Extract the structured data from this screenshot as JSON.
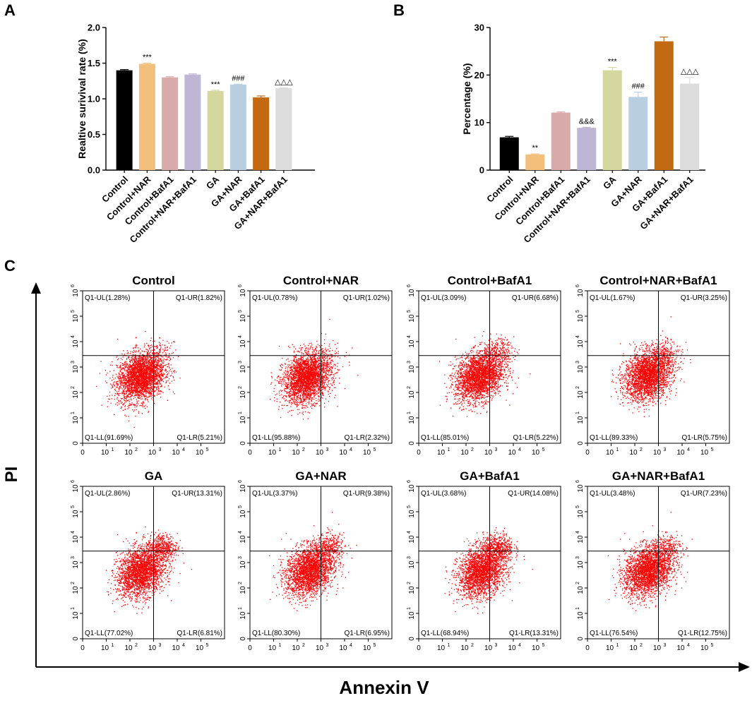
{
  "figure": {
    "panels": [
      {
        "letter": "A"
      },
      {
        "letter": "B"
      },
      {
        "letter": "C"
      }
    ],
    "colors": {
      "bars": [
        "#000000",
        "#f2bf7d",
        "#d8aaaa",
        "#bfb6d6",
        "#d5d79f",
        "#b9cfe1",
        "#c26a12",
        "#dcdcdc"
      ],
      "dots": "#ff0000",
      "axis": "#000000"
    }
  },
  "chart_data": [
    {
      "id": "A",
      "type": "bar",
      "title": "",
      "xlabel": "",
      "ylabel": "Realtive surivival rate (%)",
      "categories": [
        "Control",
        "Control+NAR",
        "Control+BafA1",
        "Control+NAR+BafA1",
        "GA",
        "GA+NAR",
        "GA+BafA1",
        "GA+NAR+BafA1"
      ],
      "values": [
        1.4,
        1.49,
        1.3,
        1.34,
        1.11,
        1.2,
        1.02,
        1.15
      ],
      "errors": [
        0.01,
        0.01,
        0.01,
        0.01,
        0.01,
        0.005,
        0.02,
        0.005
      ],
      "annotations": [
        "",
        "***",
        "",
        "",
        "***",
        "###",
        "",
        "△△△"
      ],
      "ylim": [
        0,
        2.0
      ],
      "yticks": [
        0.0,
        0.5,
        1.0,
        1.5,
        2.0
      ],
      "ytick_labels": [
        "0.0",
        "0.5",
        "1.0",
        "1.5",
        "2.0"
      ]
    },
    {
      "id": "B",
      "type": "bar",
      "title": "",
      "xlabel": "",
      "ylabel": "Percentage (%)",
      "categories": [
        "Control",
        "Control+NAR",
        "Control+BafA1",
        "Control+NAR+BafA1",
        "GA",
        "GA+NAR",
        "GA+BafA1",
        "GA+NAR+BafA1"
      ],
      "values": [
        6.9,
        3.3,
        12.1,
        8.9,
        21.0,
        15.4,
        27.1,
        18.2
      ],
      "errors": [
        0.2,
        0.1,
        0.15,
        0.1,
        0.6,
        1.0,
        0.9,
        1.3
      ],
      "annotations": [
        "",
        "**",
        "",
        "&&&",
        "***",
        "###",
        "",
        "△△△"
      ],
      "ylim": [
        0,
        30
      ],
      "yticks": [
        0,
        10,
        20,
        30
      ],
      "ytick_labels": [
        "0",
        "10",
        "20",
        "30"
      ]
    },
    {
      "id": "C",
      "type": "scatter",
      "xlabel": "Annexin V",
      "ylabel": "PI",
      "axis_exponents": [
        "1",
        "2",
        "3",
        "4",
        "5"
      ],
      "axis_zero": "0",
      "axis_base": "10",
      "y_top_exponent": "6",
      "quadrant_gate_log": {
        "x": 3.0,
        "y": 3.45
      },
      "plots": [
        {
          "title": "Control",
          "UL": "Q1-UL(1.28%)",
          "UR": "Q1-UR(1.82%)",
          "LL": "Q1-LL(91.69%)",
          "LR": "Q1-LR(5.21%)",
          "pop_ur_frac": 0.02,
          "center": [
            2.45,
            2.65
          ]
        },
        {
          "title": "Control+NAR",
          "UL": "Q1-UL(0.78%)",
          "UR": "Q1-UR(1.02%)",
          "LL": "Q1-LL(95.88%)",
          "LR": "Q1-LR(2.32%)",
          "pop_ur_frac": 0.01,
          "center": [
            2.4,
            2.6
          ]
        },
        {
          "title": "Control+BafA1",
          "UL": "Q1-UL(3.09%)",
          "UR": "Q1-UR(6.68%)",
          "LL": "Q1-LL(85.01%)",
          "LR": "Q1-LR(5.22%)",
          "pop_ur_frac": 0.07,
          "center": [
            2.55,
            2.65
          ]
        },
        {
          "title": "Control+NAR+BafA1",
          "UL": "Q1-UL(1.67%)",
          "UR": "Q1-UR(3.25%)",
          "LL": "Q1-LL(89.33%)",
          "LR": "Q1-LR(5.75%)",
          "pop_ur_frac": 0.04,
          "center": [
            2.55,
            2.7
          ]
        },
        {
          "title": "GA",
          "UL": "Q1-UL(2.86%)",
          "UR": "Q1-UR(13.31%)",
          "LL": "Q1-LL(77.02%)",
          "LR": "Q1-LR(6.81%)",
          "pop_ur_frac": 0.13,
          "center": [
            2.45,
            2.65
          ]
        },
        {
          "title": "GA+NAR",
          "UL": "Q1-UL(3.37%)",
          "UR": "Q1-UR(9.38%)",
          "LL": "Q1-LL(80.30%)",
          "LR": "Q1-LR(6.95%)",
          "pop_ur_frac": 0.1,
          "center": [
            2.5,
            2.7
          ]
        },
        {
          "title": "GA+BafA1",
          "UL": "Q1-UL(3.68%)",
          "UR": "Q1-UR(14.08%)",
          "LL": "Q1-LL(68.94%)",
          "LR": "Q1-LR(13.31%)",
          "pop_ur_frac": 0.14,
          "center": [
            2.65,
            2.65
          ]
        },
        {
          "title": "GA+NAR+BafA1",
          "UL": "Q1-UL(3.48%)",
          "UR": "Q1-UR(7.23%)",
          "LL": "Q1-LL(76.54%)",
          "LR": "Q1-LR(12.75%)",
          "pop_ur_frac": 0.07,
          "center": [
            2.55,
            2.7
          ]
        }
      ]
    }
  ]
}
